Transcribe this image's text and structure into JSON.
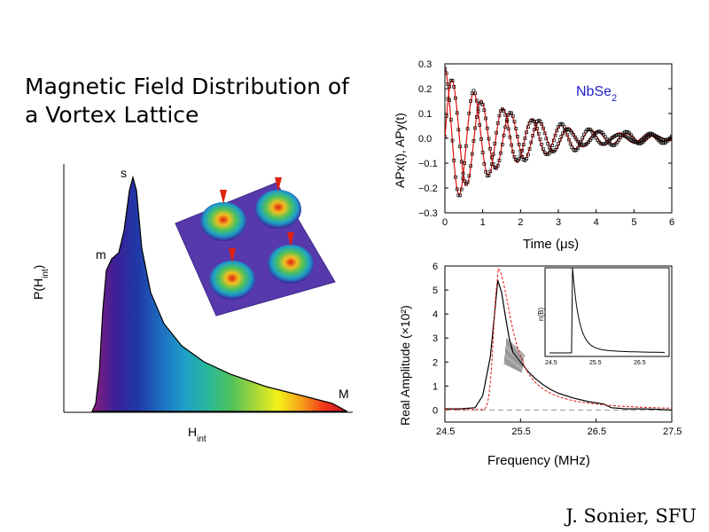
{
  "slide": {
    "title_lines": [
      "Magnetic Field Distribution of",
      "a Vortex Lattice"
    ],
    "credit": "J. Sonier, SFU"
  },
  "distribution_plot": {
    "ylabel": "P(H",
    "ylabel_sub": "int",
    "ylabel_close": ")",
    "xlabel": "H",
    "xlabel_sub": "int",
    "peak_labels": {
      "m": "m",
      "s": "s",
      "M": "M"
    }
  },
  "colors": {
    "spectrum": [
      "#8a1f7c",
      "#3b1f96",
      "#1f3aa8",
      "#1e6fc2",
      "#1ea0c8",
      "#29b89a",
      "#4fc25a",
      "#a6d63a",
      "#f3f21a",
      "#f7a21a",
      "#f2361a",
      "#c0102a"
    ],
    "fit_red": "#e01010",
    "label_blue": "#2020c8"
  },
  "chart_data": [
    {
      "type": "line",
      "title": "NbSe2",
      "ylabel": "AP_x(t), AP_y(t)",
      "xlabel": "Time (μs)",
      "xlim": [
        0,
        6
      ],
      "ylim": [
        -0.3,
        0.3
      ],
      "xticks": [
        "0",
        "1",
        "2",
        "3",
        "4",
        "5",
        "6"
      ],
      "yticks": [
        "0.3",
        "0.2",
        "0.1",
        "0.0",
        "−0.1",
        "−0.2",
        "−0.3"
      ],
      "series": [
        {
          "amplitude": 0.28,
          "phase": 0,
          "frequency_mhz": 1.3,
          "decay": 0.55,
          "offset": 0
        },
        {
          "amplitude": 0.26,
          "phase": -1.5708,
          "frequency_mhz": 1.3,
          "decay": 0.55,
          "offset": 0
        }
      ]
    },
    {
      "type": "line",
      "ylabel": "Real Amplitude (×10²)",
      "xlabel": "Frequency (MHz)",
      "xlim": [
        24.5,
        27.5
      ],
      "ylim": [
        -0.5,
        6
      ],
      "xticks": [
        "24.5",
        "25.5",
        "26.5",
        "27.5"
      ],
      "yticks": [
        "6",
        "5",
        "4",
        "3",
        "2",
        "1",
        "0"
      ],
      "x": [
        24.5,
        24.7,
        24.9,
        25.0,
        25.1,
        25.15,
        25.2,
        25.25,
        25.3,
        25.35,
        25.4,
        25.45,
        25.5,
        25.6,
        25.7,
        25.8,
        25.9,
        26.0,
        26.2,
        26.4,
        26.6,
        26.7,
        26.9,
        27.1,
        27.3,
        27.5
      ],
      "y": [
        0.05,
        0.05,
        0.1,
        0.6,
        2.2,
        3.8,
        5.4,
        4.9,
        3.9,
        3.0,
        2.4,
        2.2,
        2.0,
        1.6,
        1.3,
        1.05,
        0.85,
        0.7,
        0.5,
        0.35,
        0.25,
        0.1,
        0.05,
        0.05,
        0.03,
        0.0
      ],
      "inset": {
        "ylabel": "n(B)",
        "xticks": [
          "24.5",
          "25.5",
          "26.5"
        ]
      }
    }
  ]
}
